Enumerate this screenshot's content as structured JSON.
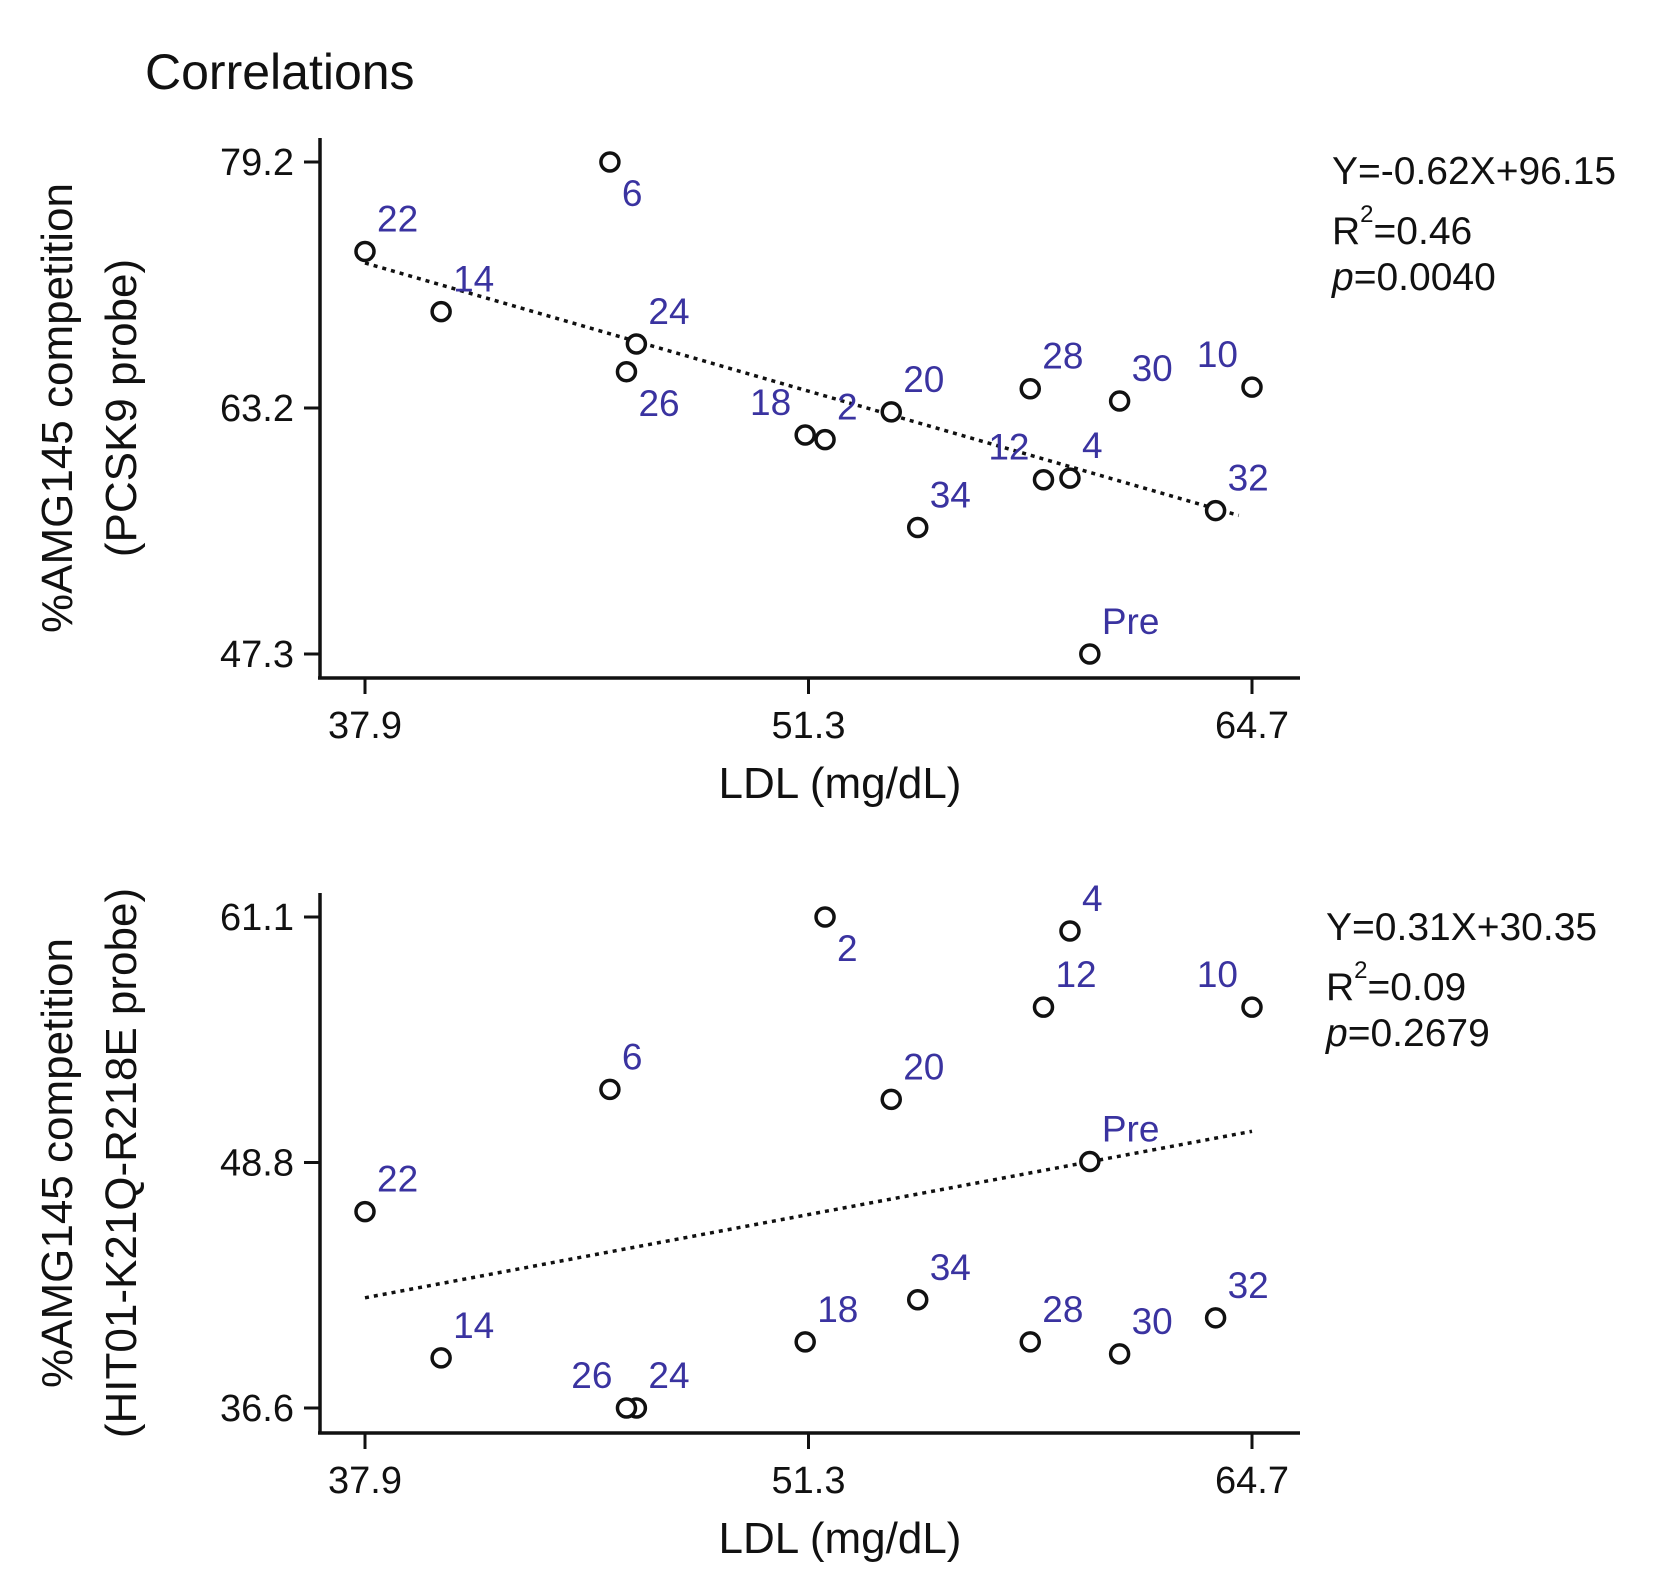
{
  "figure_title": "Correlations",
  "colors": {
    "points": "#111111",
    "labels": "#3a33a0",
    "axes": "#111111",
    "trend": "#111111"
  },
  "chart_data": [
    {
      "type": "scatter",
      "title": "",
      "xlabel": "LDL (mg/dL)",
      "ylabel_line1": "%AMG145 competition",
      "ylabel_line2": "(PCSK9 probe)",
      "xlim": [
        37.9,
        64.7
      ],
      "ylim": [
        47.3,
        79.2
      ],
      "xticks": [
        "37.9",
        "51.3",
        "64.7"
      ],
      "yticks": [
        "47.3",
        "63.2",
        "79.2"
      ],
      "trendline": {
        "slope": -0.62,
        "intercept": 96.15,
        "x_range": [
          37.9,
          64.3
        ]
      },
      "stats": {
        "equation": "Y=-0.62X+96.15",
        "r2_prefix": "R",
        "r2_sup": "2",
        "r2_value": "=0.46",
        "p_prefix": "p",
        "p_value": "=0.0040"
      },
      "points": [
        {
          "label": "6",
          "x": 45.3,
          "y": 79.2,
          "lpos": "below-right"
        },
        {
          "label": "22",
          "x": 37.9,
          "y": 73.4,
          "lpos": "above-right"
        },
        {
          "label": "14",
          "x": 40.2,
          "y": 69.5,
          "lpos": "above-right"
        },
        {
          "label": "24",
          "x": 46.1,
          "y": 67.4,
          "lpos": "above-right"
        },
        {
          "label": "26",
          "x": 45.8,
          "y": 65.6,
          "lpos": "below-right"
        },
        {
          "label": "18",
          "x": 51.2,
          "y": 61.5,
          "lpos": "above-left"
        },
        {
          "label": "2",
          "x": 51.8,
          "y": 61.2,
          "lpos": "above-right"
        },
        {
          "label": "20",
          "x": 53.8,
          "y": 63.0,
          "lpos": "above-right"
        },
        {
          "label": "34",
          "x": 54.6,
          "y": 55.5,
          "lpos": "above-right"
        },
        {
          "label": "28",
          "x": 58.0,
          "y": 64.5,
          "lpos": "above-right"
        },
        {
          "label": "12",
          "x": 58.4,
          "y": 58.6,
          "lpos": "above-left"
        },
        {
          "label": "4",
          "x": 59.2,
          "y": 58.7,
          "lpos": "above-right"
        },
        {
          "label": "30",
          "x": 60.7,
          "y": 63.7,
          "lpos": "above-right"
        },
        {
          "label": "10",
          "x": 64.7,
          "y": 64.6,
          "lpos": "above-left"
        },
        {
          "label": "32",
          "x": 63.6,
          "y": 56.6,
          "lpos": "above-right"
        },
        {
          "label": "Pre",
          "x": 59.8,
          "y": 47.3,
          "lpos": "above-right"
        }
      ]
    },
    {
      "type": "scatter",
      "title": "",
      "xlabel": "LDL (mg/dL)",
      "ylabel_line1": "%AMG145 competition",
      "ylabel_line2": "(HIT01-K21Q-R218E probe)",
      "xlim": [
        37.9,
        64.7
      ],
      "ylim": [
        36.6,
        61.1
      ],
      "xticks": [
        "37.9",
        "51.3",
        "64.7"
      ],
      "yticks": [
        "36.6",
        "48.8",
        "61.1"
      ],
      "trendline": {
        "slope": 0.31,
        "intercept": 30.35,
        "x_range": [
          37.9,
          64.7
        ]
      },
      "stats": {
        "equation": "Y=0.31X+30.35",
        "r2_prefix": "R",
        "r2_sup": "2",
        "r2_value": "=0.09",
        "p_prefix": "p",
        "p_value": "=0.2679"
      },
      "points": [
        {
          "label": "2",
          "x": 51.8,
          "y": 61.1,
          "lpos": "below-right"
        },
        {
          "label": "4",
          "x": 59.2,
          "y": 60.4,
          "lpos": "above-right"
        },
        {
          "label": "12",
          "x": 58.4,
          "y": 56.6,
          "lpos": "above-right"
        },
        {
          "label": "10",
          "x": 64.7,
          "y": 56.6,
          "lpos": "above-left"
        },
        {
          "label": "6",
          "x": 45.3,
          "y": 52.5,
          "lpos": "above-right"
        },
        {
          "label": "20",
          "x": 53.8,
          "y": 52.0,
          "lpos": "above-right"
        },
        {
          "label": "Pre",
          "x": 59.8,
          "y": 48.9,
          "lpos": "above-right"
        },
        {
          "label": "22",
          "x": 37.9,
          "y": 46.4,
          "lpos": "above-right"
        },
        {
          "label": "34",
          "x": 54.6,
          "y": 42.0,
          "lpos": "above-right"
        },
        {
          "label": "32",
          "x": 63.6,
          "y": 41.1,
          "lpos": "above-right"
        },
        {
          "label": "18",
          "x": 51.2,
          "y": 39.9,
          "lpos": "above-right"
        },
        {
          "label": "28",
          "x": 58.0,
          "y": 39.9,
          "lpos": "above-right"
        },
        {
          "label": "30",
          "x": 60.7,
          "y": 39.3,
          "lpos": "above-right"
        },
        {
          "label": "14",
          "x": 40.2,
          "y": 39.1,
          "lpos": "above-right"
        },
        {
          "label": "24",
          "x": 46.1,
          "y": 36.6,
          "lpos": "above-right"
        },
        {
          "label": "26",
          "x": 45.8,
          "y": 36.6,
          "lpos": "above-left"
        }
      ]
    }
  ]
}
